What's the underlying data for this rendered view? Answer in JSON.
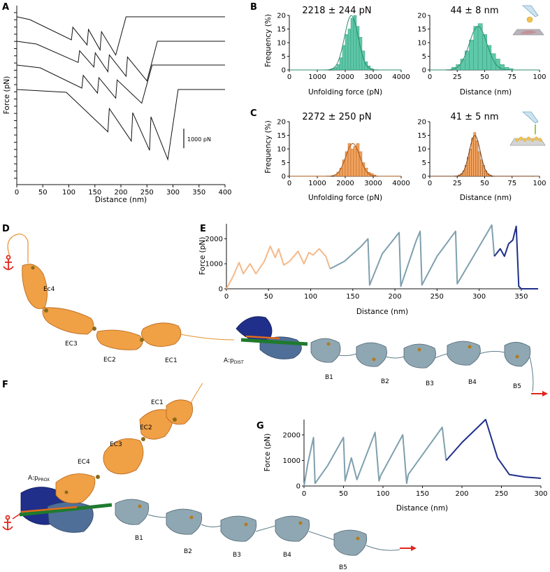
{
  "figure": {
    "panel_labels": [
      "A",
      "B",
      "C",
      "D",
      "E",
      "F",
      "G"
    ],
    "colors": {
      "teal": "#5ec9a8",
      "orange": "#f2a35e",
      "orange_light": "#f4b98a",
      "slate": "#7fa0ae",
      "navy": "#1f2f8a",
      "green": "#1f7a2e",
      "anchor_red": "#e0261b"
    }
  },
  "panel_a": {
    "ylabel": "Force (pN)",
    "xlabel": "Distance (nm)",
    "scale_bar": "1000 pN",
    "x_ticks": [
      "0",
      "50",
      "100",
      "150",
      "200",
      "250",
      "300",
      "350",
      "400"
    ]
  },
  "panel_b": {
    "left_stat": "2218 ± 244 pN",
    "right_stat": "44 ± 8 nm",
    "ylabel": "Frequency (%)",
    "left_xlabel": "Unfolding force (pN)",
    "right_xlabel": "Distance (nm)",
    "y_ticks": [
      "0",
      "5",
      "10",
      "15",
      "20"
    ],
    "left_x_ticks": [
      "0",
      "1000",
      "2000",
      "3000",
      "4000"
    ],
    "right_x_ticks": [
      "0",
      "25",
      "50",
      "75",
      "100"
    ]
  },
  "panel_c": {
    "left_stat": "2272 ± 250 pN",
    "right_stat": "41 ± 5 nm",
    "ylabel": "Frequency (%)",
    "left_xlabel": "Unfolding force (pN)",
    "right_xlabel": "Distance (nm)",
    "y_ticks": [
      "0",
      "5",
      "10",
      "15",
      "20"
    ],
    "left_x_ticks": [
      "0",
      "1000",
      "2000",
      "3000",
      "4000"
    ],
    "right_x_ticks": [
      "0",
      "25",
      "50",
      "75",
      "100"
    ]
  },
  "panel_d": {
    "domains": [
      "Ec4",
      "EC3",
      "EC2",
      "EC1",
      "B1",
      "B2",
      "B3",
      "B4",
      "B5"
    ],
    "chain_label": "A:p",
    "chain_sub": "DIST"
  },
  "panel_e": {
    "ylabel": "Force (pN)",
    "xlabel": "Distance (nm)",
    "y_ticks": [
      "0",
      "1000",
      "2000"
    ],
    "x_ticks": [
      "0",
      "50",
      "100",
      "150",
      "200",
      "250",
      "300",
      "350"
    ]
  },
  "panel_f": {
    "domains": [
      "EC1",
      "EC2",
      "EC3",
      "EC4",
      "B1",
      "B2",
      "B3",
      "B4",
      "B5"
    ],
    "chain_label": "A:p",
    "chain_sub": "PROX"
  },
  "panel_g": {
    "ylabel": "Force (pN)",
    "xlabel": "Distance (nm)",
    "y_ticks": [
      "0",
      "1000",
      "2000"
    ],
    "x_ticks": [
      "0",
      "50",
      "100",
      "150",
      "200",
      "250",
      "300"
    ]
  },
  "chart_data": [
    {
      "id": "A",
      "type": "line",
      "title": "",
      "xlabel": "Distance (nm)",
      "ylabel": "Force (pN)",
      "xlim": [
        0,
        400
      ],
      "note": "Four offset force-extension traces; peak positions (nm)",
      "series": [
        {
          "name": "trace1",
          "peaks_nm": [
            105,
            135,
            160,
            190
          ]
        },
        {
          "name": "trace2",
          "peaks_nm": [
            118,
            148,
            175,
            210,
            250
          ]
        },
        {
          "name": "trace3",
          "peaks_nm": [
            125,
            155,
            190,
            240
          ]
        },
        {
          "name": "trace4",
          "peaks_nm": [
            175,
            220,
            255,
            290
          ]
        }
      ]
    },
    {
      "id": "B-left",
      "type": "bar",
      "title": "2218 ± 244 pN",
      "xlabel": "Unfolding force (pN)",
      "ylabel": "Frequency (%)",
      "xlim": [
        0,
        4000
      ],
      "ylim": [
        0,
        20
      ],
      "bin_width": 100,
      "bin_centers": [
        1550,
        1650,
        1750,
        1850,
        1950,
        2050,
        2150,
        2250,
        2350,
        2450,
        2550,
        2650,
        2750,
        2850,
        2950
      ],
      "values": [
        0.5,
        1,
        2,
        4.5,
        9,
        13,
        15,
        19,
        20,
        16,
        12,
        7,
        3,
        1.5,
        0.5
      ],
      "fit": {
        "mean": 2218,
        "sd": 244,
        "peak": 20
      }
    },
    {
      "id": "B-right",
      "type": "bar",
      "title": "44 ± 8 nm",
      "xlabel": "Distance (nm)",
      "ylabel": "Frequency (%)",
      "xlim": [
        0,
        100
      ],
      "ylim": [
        0,
        20
      ],
      "bin_width": 4,
      "bin_centers": [
        22,
        26,
        30,
        34,
        38,
        42,
        46,
        50,
        54,
        58,
        62,
        66,
        70,
        74
      ],
      "values": [
        1,
        2,
        4,
        7,
        11,
        16,
        17,
        13,
        9,
        6,
        4,
        2,
        1,
        0.5
      ],
      "fit": {
        "mean": 44,
        "sd": 8,
        "peak": 16
      }
    },
    {
      "id": "C-left",
      "type": "bar",
      "title": "2272 ± 250 pN",
      "xlabel": "Unfolding force (pN)",
      "ylabel": "Frequency (%)",
      "xlim": [
        0,
        4000
      ],
      "ylim": [
        0,
        20
      ],
      "bin_width": 100,
      "bin_centers": [
        1650,
        1750,
        1850,
        1950,
        2050,
        2150,
        2250,
        2350,
        2450,
        2550,
        2650,
        2750,
        2850,
        2950,
        3050
      ],
      "values": [
        0.5,
        1.5,
        3,
        6,
        9,
        12,
        10,
        11,
        12,
        9,
        5,
        3,
        1.5,
        1,
        0.5
      ],
      "fit": {
        "mean": 2272,
        "sd": 250,
        "peak": 12
      }
    },
    {
      "id": "C-right",
      "type": "bar",
      "title": "41 ± 5 nm",
      "xlabel": "Distance (nm)",
      "ylabel": "Frequency (%)",
      "xlim": [
        0,
        100
      ],
      "ylim": [
        0,
        20
      ],
      "bin_width": 2,
      "bin_centers": [
        27,
        29,
        31,
        33,
        35,
        37,
        39,
        41,
        43,
        45,
        47,
        49,
        51,
        53,
        55
      ],
      "values": [
        0.5,
        1,
        2,
        4,
        7,
        10,
        14,
        16,
        13,
        9,
        6,
        4,
        2,
        1,
        0.5
      ],
      "fit": {
        "mean": 41,
        "sd": 5,
        "peak": 15
      }
    },
    {
      "id": "E",
      "type": "line",
      "title": "",
      "xlabel": "Distance (nm)",
      "ylabel": "Force (pN)",
      "xlim": [
        0,
        370
      ],
      "ylim": [
        0,
        2600
      ],
      "series": [
        {
          "name": "cadherin",
          "color": "#f4b98a",
          "x": [
            0,
            8,
            15,
            20,
            28,
            35,
            45,
            52,
            58,
            62,
            68,
            75,
            85,
            92,
            98,
            103,
            110,
            118,
            123
          ],
          "y": [
            0,
            500,
            1050,
            600,
            1000,
            600,
            1100,
            1700,
            1250,
            1600,
            950,
            1100,
            1500,
            1000,
            1450,
            1350,
            1600,
            1300,
            800
          ]
        },
        {
          "name": "Bdomains",
          "color": "#7fa0ae",
          "x": [
            123,
            140,
            160,
            168,
            170,
            185,
            205,
            207,
            225,
            230,
            232,
            250,
            272,
            274,
            295,
            315,
            318
          ],
          "y": [
            800,
            1100,
            1700,
            2000,
            150,
            1400,
            2250,
            100,
            1900,
            2300,
            150,
            1300,
            2300,
            200,
            1400,
            2550,
            1300
          ]
        },
        {
          "name": "pilin",
          "color": "#1f2f8a",
          "x": [
            318,
            325,
            330,
            335,
            340,
            344,
            347,
            350,
            370
          ],
          "y": [
            1300,
            1600,
            1300,
            1800,
            1950,
            2500,
            100,
            0,
            0
          ]
        }
      ]
    },
    {
      "id": "G",
      "type": "line",
      "title": "",
      "xlabel": "Distance (nm)",
      "ylabel": "Force (pN)",
      "xlim": [
        0,
        300
      ],
      "ylim": [
        0,
        2600
      ],
      "series": [
        {
          "name": "Bdomains",
          "color": "#7fa0ae",
          "x": [
            0,
            5,
            12,
            14,
            30,
            50,
            52,
            60,
            65,
            67,
            90,
            95,
            97,
            125,
            130,
            132,
            175,
            180
          ],
          "y": [
            0,
            900,
            1900,
            100,
            800,
            1900,
            200,
            1100,
            500,
            250,
            2100,
            200,
            400,
            2000,
            100,
            450,
            2300,
            1000
          ]
        },
        {
          "name": "pilin",
          "color": "#1f2f8a",
          "x": [
            180,
            200,
            220,
            230,
            245,
            260,
            280,
            300
          ],
          "y": [
            1000,
            1700,
            2300,
            2600,
            1100,
            450,
            350,
            300
          ]
        }
      ]
    }
  ]
}
